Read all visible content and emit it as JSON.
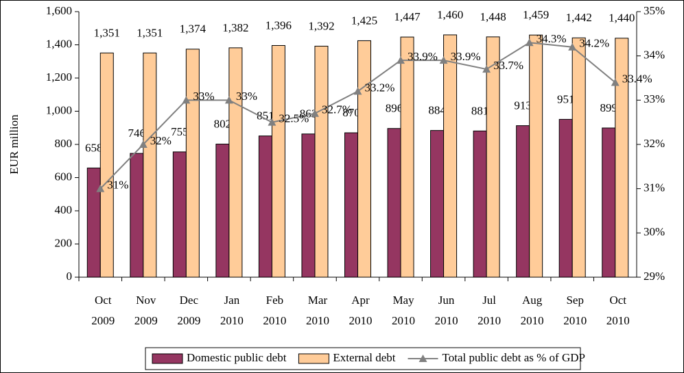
{
  "chart_data": {
    "type": "bar-line",
    "y_label": "EUR million",
    "categories": [
      [
        "Oct",
        "2009"
      ],
      [
        "Nov",
        "2009"
      ],
      [
        "Dec",
        "2009"
      ],
      [
        "Jan",
        "2010"
      ],
      [
        "Feb",
        "2010"
      ],
      [
        "Mar",
        "2010"
      ],
      [
        "Apr",
        "2010"
      ],
      [
        "May",
        "2010"
      ],
      [
        "Jun",
        "2010"
      ],
      [
        "Jul",
        "2010"
      ],
      [
        "Aug",
        "2010"
      ],
      [
        "Sep",
        "2010"
      ],
      [
        "Oct",
        "2010"
      ]
    ],
    "series": [
      {
        "name": "Domestic public debt",
        "color": "#953661",
        "type": "bar",
        "values": [
          658,
          746,
          755,
          802,
          851,
          863,
          870,
          896,
          884,
          881,
          913,
          951,
          899
        ]
      },
      {
        "name": "External debt",
        "color": "#ffcc99",
        "type": "bar",
        "values": [
          1351,
          1351,
          1374,
          1382,
          1396,
          1392,
          1425,
          1447,
          1460,
          1448,
          1459,
          1442,
          1440
        ],
        "value_labels": [
          "1,351",
          "1,351",
          "1,374",
          "1,382",
          "1,396",
          "1,392",
          "1,425",
          "1,447",
          "1,460",
          "1,448",
          "1,459",
          "1,442",
          "1,440"
        ]
      },
      {
        "name": "Total public debt as % of GDP",
        "color": "#808080",
        "type": "line",
        "axis": "y2",
        "values": [
          31,
          32,
          33,
          33,
          32.5,
          32.7,
          33.2,
          33.9,
          33.9,
          33.7,
          34.3,
          34.2,
          33.4
        ],
        "value_labels": [
          "31%",
          "32%",
          "33%",
          "33%",
          "32.5%",
          "32.7%",
          "33.2%",
          "33.9%",
          "33.9%",
          "33.7%",
          "34.3%",
          "34.2%",
          "33.4%"
        ]
      }
    ],
    "ylim": [
      0,
      1600
    ],
    "yticks": [
      0,
      200,
      400,
      600,
      800,
      {
        "value": 1000,
        "label": "1,000"
      },
      {
        "value": 1200,
        "label": "1,200"
      },
      {
        "value": 1400,
        "label": "1,400"
      },
      {
        "value": 1600,
        "label": "1,600"
      }
    ],
    "y2lim": [
      29,
      35
    ],
    "y2ticks": [
      {
        "value": 29,
        "label": "29%"
      },
      {
        "value": 30,
        "label": "30%"
      },
      {
        "value": 31,
        "label": "31%"
      },
      {
        "value": 32,
        "label": "32%"
      },
      {
        "value": 33,
        "label": "33%"
      },
      {
        "value": 34,
        "label": "34%"
      },
      {
        "value": 35,
        "label": "35%"
      }
    ],
    "legend": "bottom"
  }
}
